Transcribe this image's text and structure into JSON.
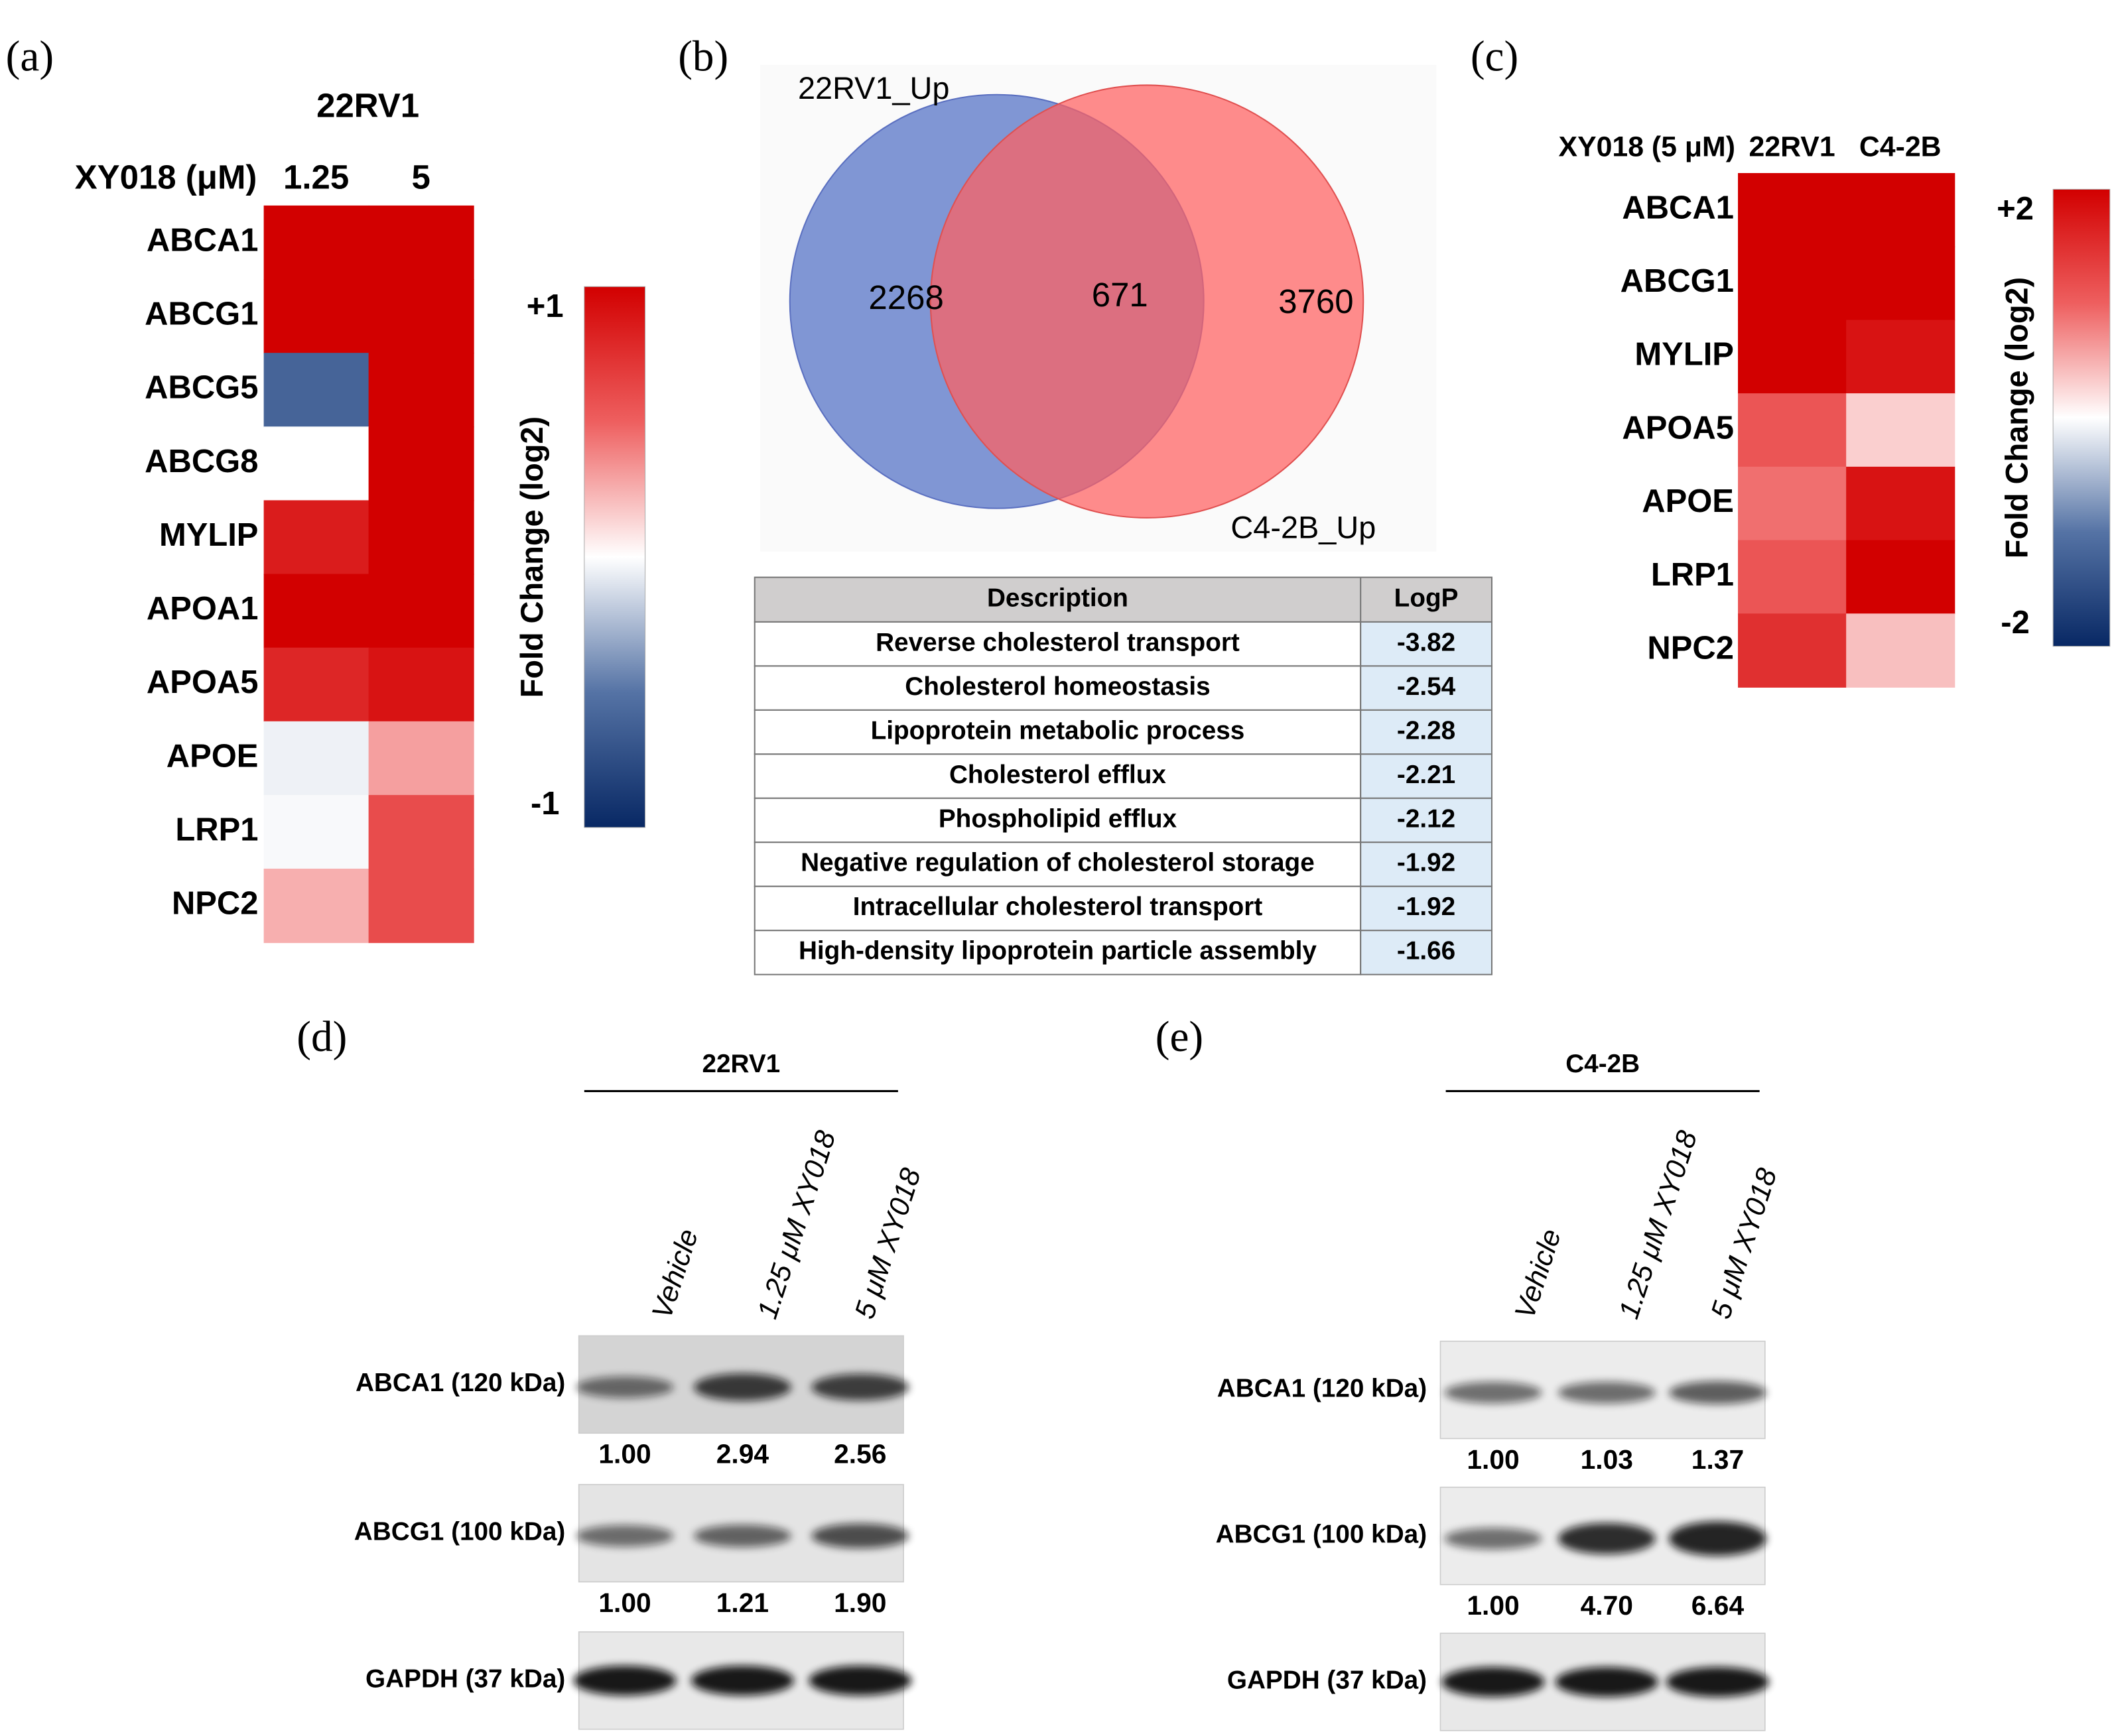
{
  "panels": {
    "a": {
      "label": "(a)",
      "title": "22RV1",
      "row_header": "XY018 (μM)",
      "columns": [
        "1.25",
        "5"
      ],
      "genes": [
        "ABCA1",
        "ABCG1",
        "ABCG5",
        "ABCG8",
        "MYLIP",
        "APOA1",
        "APOA5",
        "APOE",
        "LRP1",
        "NPC2"
      ],
      "values": [
        [
          1,
          1
        ],
        [
          1,
          1
        ],
        [
          -0.6,
          1
        ],
        [
          0,
          1
        ],
        [
          0.85,
          1
        ],
        [
          1,
          1
        ],
        [
          0.8,
          0.9
        ],
        [
          -0.05,
          0.3
        ],
        [
          -0.02,
          0.6
        ],
        [
          0.25,
          0.6
        ]
      ],
      "colorbar": {
        "label": "Fold Change (log2)",
        "lim": [
          -1,
          1
        ],
        "ticks": [
          {
            "value": 1,
            "label": "+1"
          },
          -1
        ]
      }
    },
    "b": {
      "label": "(b)",
      "venn": {
        "sets": [
          {
            "name": "22RV1_Up",
            "only": 2268
          },
          {
            "name": "C4-2B_Up",
            "only": 3760
          }
        ],
        "overlap": 671
      },
      "table": {
        "columns": [
          "Description",
          "LogP"
        ],
        "rows": [
          [
            "Reverse cholesterol transport",
            -3.82
          ],
          [
            "Cholesterol homeostasis",
            -2.54
          ],
          [
            "Lipoprotein metabolic process",
            -2.28
          ],
          [
            "Cholesterol efflux",
            -2.21
          ],
          [
            "Phospholipid  efflux",
            -2.12
          ],
          [
            "Negative regulation of cholesterol storage",
            -1.92
          ],
          [
            "Intracellular cholesterol transport",
            -1.92
          ],
          [
            "High-density lipoprotein particle assembly",
            -1.66
          ]
        ]
      }
    },
    "c": {
      "label": "(c)",
      "row_header": "XY018 (5 μM)",
      "columns": [
        "22RV1",
        "C4-2B"
      ],
      "genes": [
        "ABCA1",
        "ABCG1",
        "MYLIP",
        "APOA5",
        "APOE",
        "LRP1",
        "NPC2"
      ],
      "values": [
        [
          2,
          2
        ],
        [
          2,
          2
        ],
        [
          2,
          1.8
        ],
        [
          1.1,
          0.3
        ],
        [
          0.9,
          1.8
        ],
        [
          1.1,
          2
        ],
        [
          1.5,
          0.4
        ]
      ],
      "colorbar": {
        "label": "Fold Change (log2)",
        "lim": [
          -2,
          2
        ],
        "ticks": [
          {
            "value": 2,
            "label": "+2"
          },
          -2
        ]
      }
    },
    "d": {
      "label": "(d)",
      "cell_line": "22RV1",
      "lanes": [
        "Vehicle",
        "1.25 μM XY018",
        "5 μM XY018"
      ],
      "blots": [
        {
          "name": "ABCA1 (120 kDa)",
          "values": [
            1,
            2.94,
            2.56
          ],
          "value_labels": [
            "1.00",
            "2.94",
            "2.56"
          ]
        },
        {
          "name": "ABCG1 (100 kDa)",
          "values": [
            1,
            1.21,
            1.9
          ],
          "value_labels": [
            "1.00",
            "1.21",
            "1.90"
          ]
        },
        {
          "name": "GAPDH (37 kDa)"
        }
      ]
    },
    "e": {
      "label": "(e)",
      "cell_line": "C4-2B",
      "lanes": [
        "Vehicle",
        "1.25 μM XY018",
        "5 μM XY018"
      ],
      "blots": [
        {
          "name": "ABCA1 (120 kDa)",
          "values": [
            1,
            1.03,
            1.37
          ],
          "value_labels": [
            "1.00",
            "1.03",
            "1.37"
          ]
        },
        {
          "name": "ABCG1 (100 kDa)",
          "values": [
            1,
            4.7,
            6.64
          ],
          "value_labels": [
            "1.00",
            "4.70",
            "6.64"
          ]
        },
        {
          "name": "GAPDH (37 kDa)"
        }
      ]
    }
  }
}
